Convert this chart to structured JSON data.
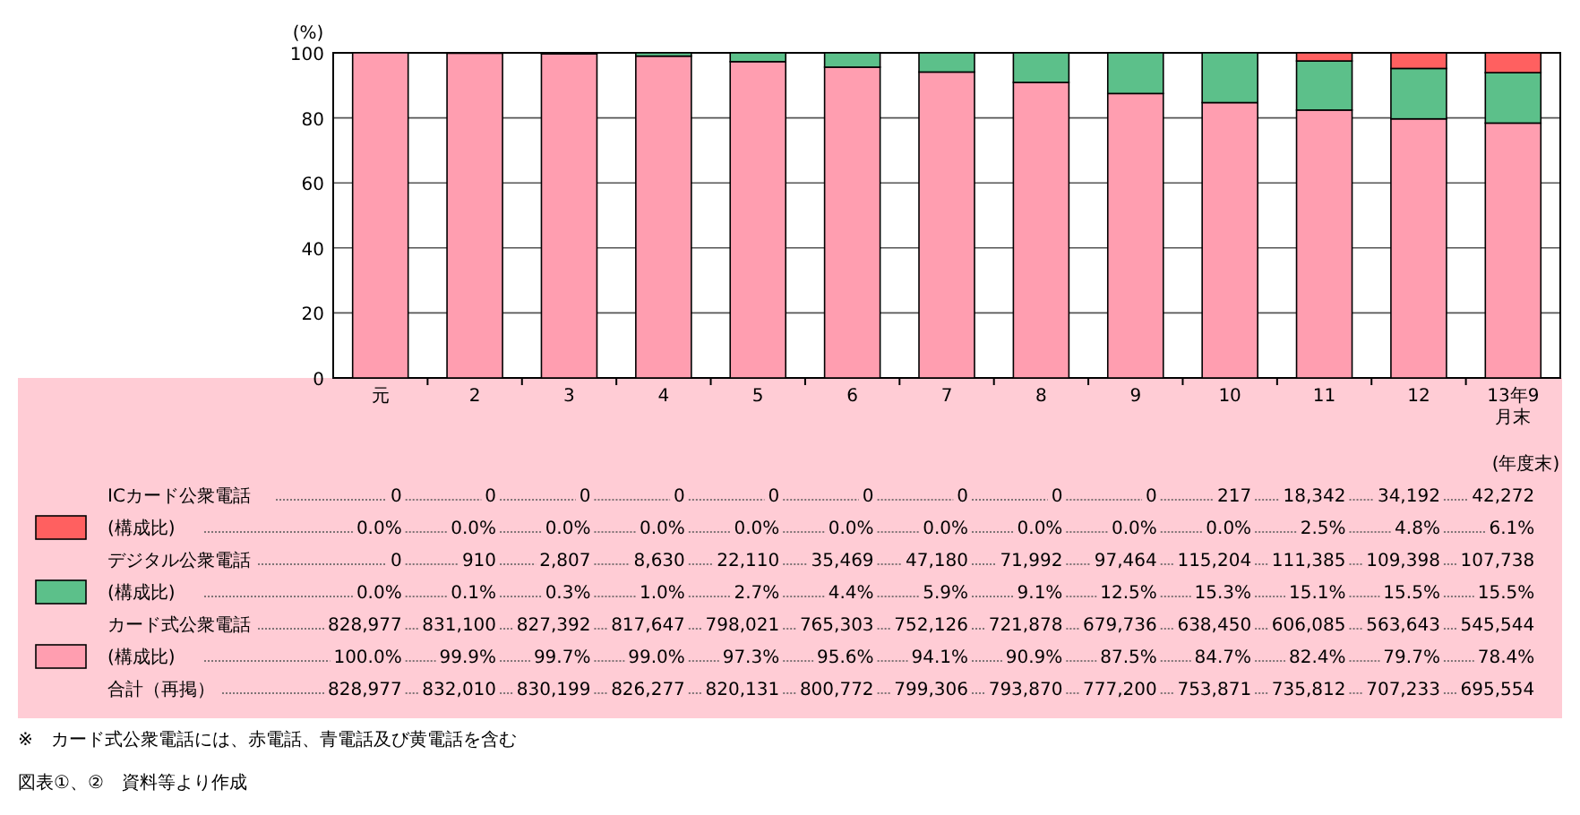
{
  "chart_data": {
    "type": "bar",
    "stacked": true,
    "ylabel": "(%)",
    "categories": [
      "元",
      "2",
      "3",
      "4",
      "5",
      "6",
      "7",
      "8",
      "9",
      "10",
      "11",
      "12",
      "13年9月末"
    ],
    "ylim": [
      0,
      100
    ],
    "yticks": [
      0,
      20,
      40,
      60,
      80,
      100
    ],
    "grid": "y",
    "legend": "bottom left",
    "series": [
      {
        "name": "(構成比)",
        "color": "#ff9eb0",
        "values": [
          100.0,
          99.9,
          99.7,
          99.0,
          97.3,
          95.6,
          94.1,
          90.9,
          87.5,
          84.7,
          82.4,
          79.7,
          78.4
        ],
        "value_labels": [
          "100.0%",
          "99.9%",
          "99.7%",
          "99.0%",
          "97.3%",
          "95.6%",
          "94.1%",
          "90.9%",
          "87.5%",
          "84.7%",
          "82.4%",
          "79.7%",
          "78.4%"
        ]
      },
      {
        "name": "(構成比)",
        "color": "#5cc08a",
        "values": [
          0.0,
          0.1,
          0.3,
          1.0,
          2.7,
          4.4,
          5.9,
          9.1,
          12.5,
          15.3,
          15.1,
          15.5,
          15.5
        ],
        "value_labels": [
          "0.0%",
          "0.1%",
          "0.3%",
          "1.0%",
          "2.7%",
          "4.4%",
          "5.9%",
          "9.1%",
          "12.5%",
          "15.3%",
          "15.1%",
          "15.5%",
          "15.5%"
        ]
      },
      {
        "name": "(構成比)",
        "color": "#ff6060",
        "values": [
          0.0,
          0.0,
          0.0,
          0.0,
          0.0,
          0.0,
          0.0,
          0.0,
          0.0,
          0.0,
          2.5,
          4.8,
          6.1
        ],
        "value_labels": [
          "0.0%",
          "0.0%",
          "0.0%",
          "0.0%",
          "0.0%",
          "0.0%",
          "0.0%",
          "0.0%",
          "0.0%",
          "0.0%",
          "2.5%",
          "4.8%",
          "6.1%"
        ]
      }
    ],
    "annotations": [
      "(年度末)",
      "ICカード公衆電話",
      "0",
      "0",
      "0",
      "0",
      "0",
      "0",
      "0",
      "0",
      "0",
      "217",
      "18,342",
      "34,192",
      "42,272",
      "デジタル公衆電話",
      "0",
      "910",
      "2,807",
      "8,630",
      "22,110",
      "35,469",
      "47,180",
      "71,992",
      "97,464",
      "115,204",
      "111,385",
      "109,398",
      "107,738",
      "カード式公衆電話",
      "828,977",
      "831,100",
      "827,392",
      "817,647",
      "798,021",
      "765,303",
      "752,126",
      "721,878",
      "679,736",
      "638,450",
      "606,085",
      "563,643",
      "545,544",
      "合計（再掲）",
      "828,977",
      "832,010",
      "830,199",
      "826,277",
      "820,131",
      "800,772",
      "799,306",
      "793,870",
      "777,200",
      "753,871",
      "735,812",
      "707,233",
      "695,554",
      "※　カード式公衆電話には、赤電話、青電話及び黄電話を含む",
      "図表①、②　資料等より作成"
    ]
  }
}
